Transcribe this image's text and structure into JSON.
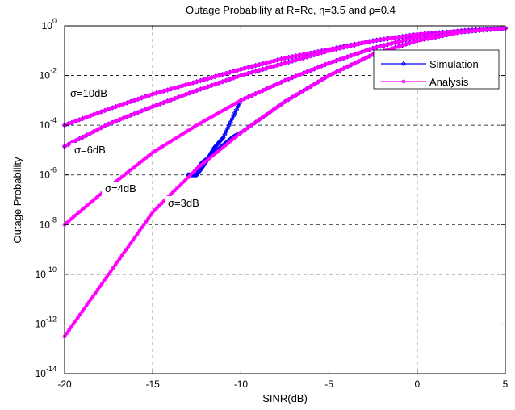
{
  "chart_data": {
    "type": "line",
    "title": "Outage Probability at R=Rc, η=3.5 and ρ=0.4",
    "xlabel": "SINR(dB)",
    "ylabel": "Outage Probability",
    "xlim": [
      -20,
      5
    ],
    "ylim": [
      1e-14,
      1
    ],
    "yscale": "log",
    "grid": true,
    "legend_position": "top-right",
    "x_ticks": [
      "-20",
      "-15",
      "-10",
      "-5",
      "0",
      "5"
    ],
    "y_ticks": [
      {
        "base": "10",
        "exp": "0"
      },
      {
        "base": "10",
        "exp": "-2"
      },
      {
        "base": "10",
        "exp": "-4"
      },
      {
        "base": "10",
        "exp": "-6"
      },
      {
        "base": "10",
        "exp": "-8"
      },
      {
        "base": "10",
        "exp": "-10"
      },
      {
        "base": "10",
        "exp": "-12"
      },
      {
        "base": "10",
        "exp": "-14"
      }
    ],
    "legend": [
      {
        "label": "Simulation",
        "color": "#0000ff",
        "marker": "diamond"
      },
      {
        "label": "Analysis",
        "color": "#ff00ff",
        "marker": "star"
      }
    ],
    "annotations": [
      {
        "text": "σ=10dB",
        "series": 0
      },
      {
        "text": "σ=6dB",
        "series": 1
      },
      {
        "text": "σ=4dB",
        "series": 2
      },
      {
        "text": "σ=3dB",
        "series": 3
      }
    ],
    "curves": [
      {
        "sigma_label": "σ=10dB",
        "analysis_x": [
          -20,
          -17.5,
          -15,
          -12.5,
          -10,
          -7.5,
          -5,
          -2.5,
          0,
          2.5,
          5
        ],
        "analysis_y": [
          0.0001,
          0.000447,
          0.00178,
          0.00562,
          0.0178,
          0.0501,
          0.112,
          0.251,
          0.447,
          0.631,
          0.794
        ],
        "simulation_x": [
          -20,
          -17.5,
          -15,
          -12.5,
          -10,
          -7.5,
          -5,
          -2.5,
          0,
          2.5,
          5
        ],
        "simulation_y": [
          0.0001,
          0.000447,
          0.00178,
          0.00562,
          0.0178,
          0.0501,
          0.112,
          0.251,
          0.447,
          0.631,
          0.794
        ]
      },
      {
        "sigma_label": "σ=6dB",
        "analysis_x": [
          -20,
          -17.5,
          -15,
          -12.5,
          -10,
          -7.5,
          -5,
          -2.5,
          0,
          2.5,
          5
        ],
        "analysis_y": [
          1.41e-05,
          0.000112,
          0.000562,
          0.00251,
          0.01,
          0.0316,
          0.1,
          0.251,
          0.447,
          0.631,
          0.794
        ],
        "simulation_x": [
          -20,
          -17.5,
          -15,
          -12.5,
          -10,
          -7.5,
          -5,
          -2.5,
          0,
          2.5,
          5
        ],
        "simulation_y": [
          1.41e-05,
          0.000112,
          0.000562,
          0.00251,
          0.01,
          0.0316,
          0.1,
          0.251,
          0.447,
          0.631,
          0.794
        ]
      },
      {
        "sigma_label": "σ=4dB",
        "analysis_x": [
          -20,
          -17.5,
          -15,
          -12.5,
          -10,
          -7.5,
          -5,
          -2.5,
          0,
          2.5,
          5
        ],
        "analysis_y": [
          1e-08,
          3.16e-07,
          7.94e-06,
          0.0001,
          0.001,
          0.00631,
          0.0316,
          0.126,
          0.355,
          0.631,
          0.794
        ],
        "simulation_x": [
          -13,
          -12.5,
          -12,
          -11.5,
          -11,
          -10,
          -7.5,
          -5,
          -2.5,
          0,
          2.5,
          5
        ],
        "simulation_y": [
          1e-06,
          1e-06,
          3.16e-06,
          1.26e-05,
          3.16e-05,
          0.001,
          0.00631,
          0.0316,
          0.126,
          0.355,
          0.631,
          0.794
        ]
      },
      {
        "sigma_label": "σ=3dB",
        "analysis_x": [
          -20,
          -17.5,
          -15,
          -12.5,
          -10,
          -7.5,
          -5,
          -2.5,
          0,
          2.5,
          5
        ],
        "analysis_y": [
          3.16e-13,
          1e-10,
          3.16e-08,
          1.78e-06,
          5.01e-05,
          0.000891,
          0.01,
          0.0708,
          0.251,
          0.562,
          0.794
        ],
        "simulation_x": [
          -12.5,
          -12.2,
          -12,
          -11.5,
          -11,
          -10.5,
          -10,
          -7.5,
          -5,
          -2.5,
          0,
          2.5,
          5
        ],
        "simulation_y": [
          1.58e-06,
          3.16e-06,
          3.98e-06,
          7.94e-06,
          1.58e-05,
          3.16e-05,
          5.01e-05,
          0.000891,
          0.01,
          0.0708,
          0.251,
          0.562,
          0.794
        ]
      }
    ]
  }
}
